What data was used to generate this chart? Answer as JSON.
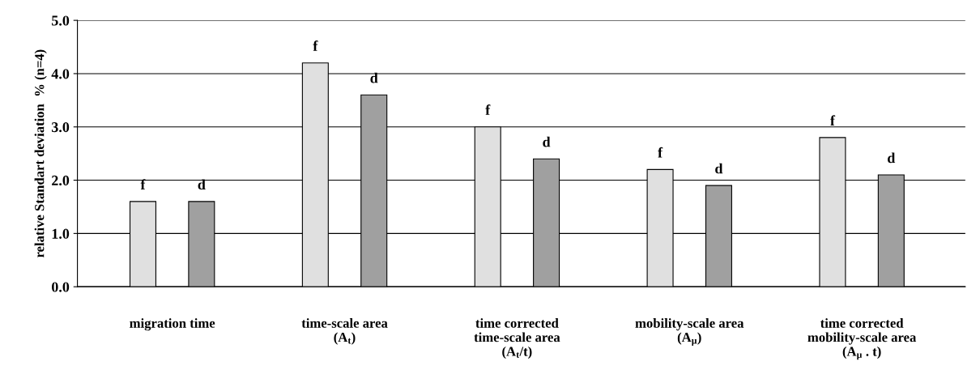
{
  "chart_data": {
    "type": "bar",
    "ylabel": "relative Standart deviation  % (n=4)",
    "categories": [
      "migration time",
      "time-scale area\n(A$_{t}$)",
      "time corrected\ntime-scale area\n(A$_{t}$/t)",
      "mobility-scale area\n(A$_{μ}$)",
      "time corrected\nmobility-scale area\n(A$_{μ}$ . t)"
    ],
    "series": [
      {
        "color": "#e0e0e0",
        "values": [
          1.6,
          4.2,
          3.0,
          2.2,
          2.8
        ],
        "value_labels": [
          "f",
          "f",
          "f",
          "f",
          "f"
        ]
      },
      {
        "color": "#a0a0a0",
        "values": [
          1.6,
          3.6,
          2.4,
          1.9,
          2.1
        ],
        "value_labels": [
          "d",
          "d",
          "d",
          "d",
          "d"
        ]
      }
    ],
    "ylim": [
      0,
      5
    ],
    "yticks": [
      {
        "value": 0,
        "label": "0.0"
      },
      {
        "value": 1,
        "label": "1.0"
      },
      {
        "value": 2,
        "label": "2.0"
      },
      {
        "value": 3,
        "label": "3.0"
      },
      {
        "value": 4,
        "label": "4.0"
      },
      {
        "value": 5,
        "label": "5.0"
      }
    ],
    "grid": "y",
    "legend": false
  }
}
